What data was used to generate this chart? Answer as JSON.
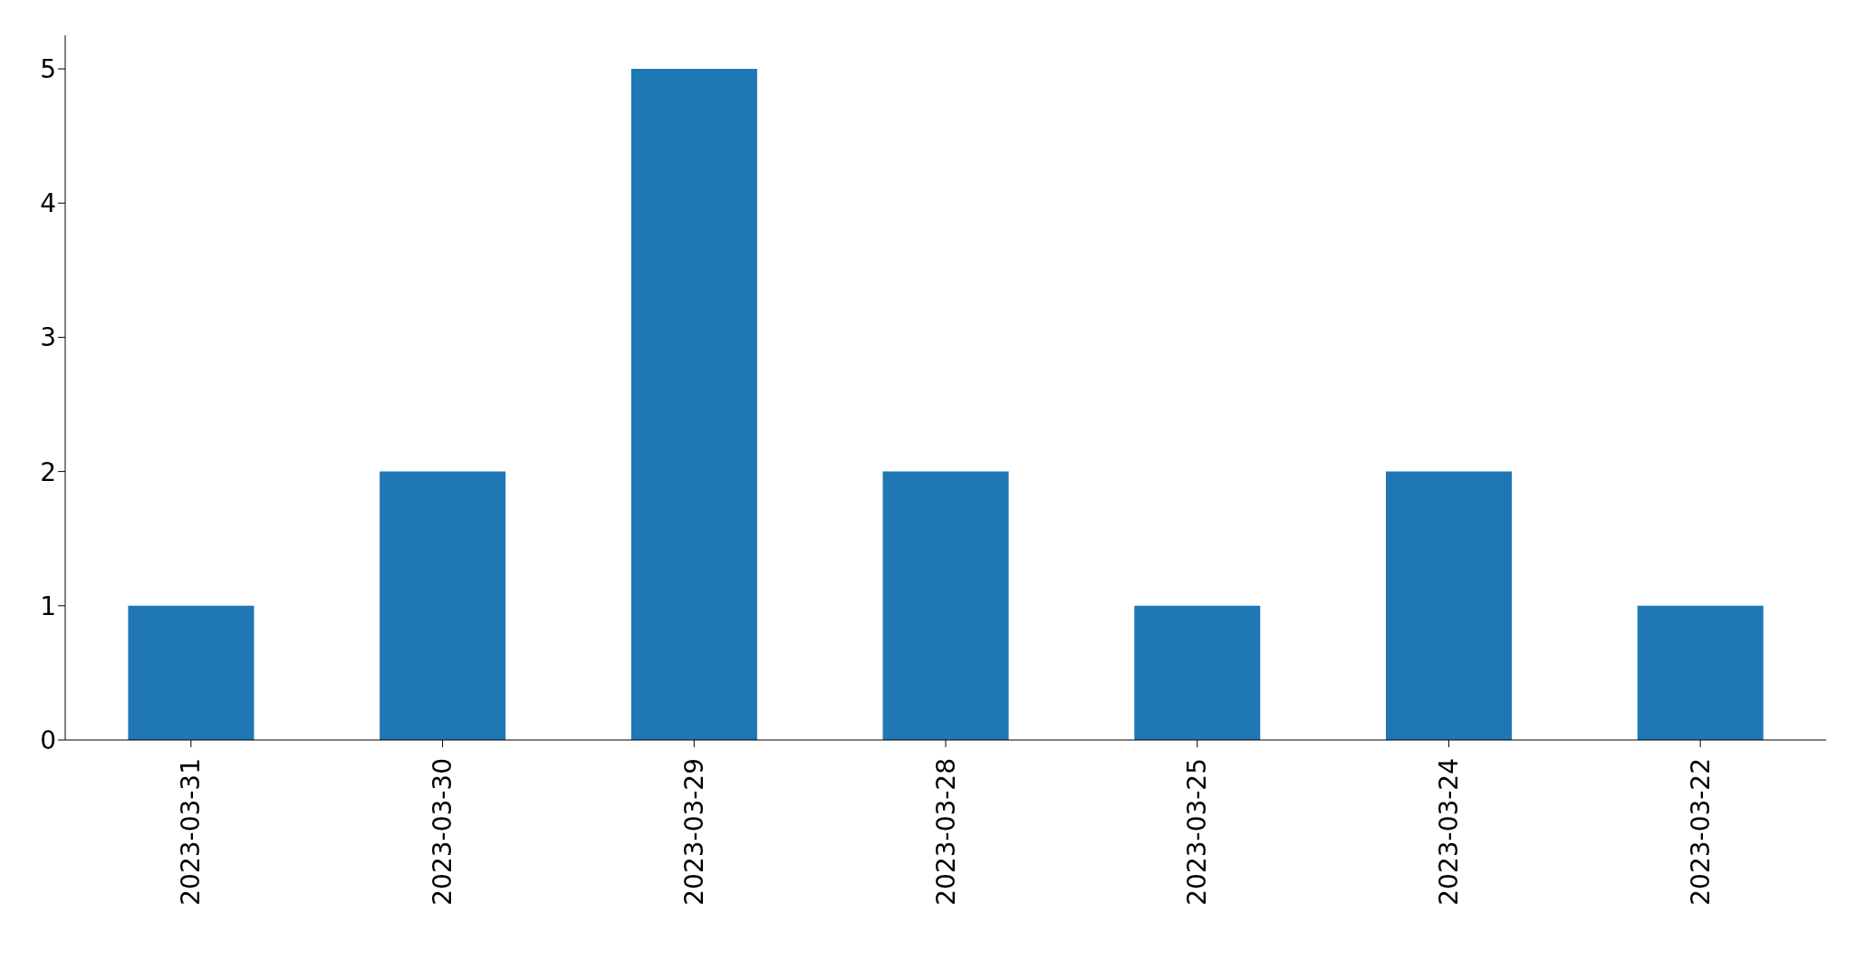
{
  "chart_data": {
    "type": "bar",
    "categories": [
      "2023-03-31",
      "2023-03-30",
      "2023-03-29",
      "2023-03-28",
      "2023-03-25",
      "2023-03-24",
      "2023-03-22"
    ],
    "values": [
      1,
      2,
      5,
      2,
      1,
      2,
      1
    ],
    "color": "#1f77b4",
    "ylim": [
      0,
      5.25
    ],
    "yticks": [
      0,
      1,
      2,
      3,
      4,
      5
    ],
    "grid": false,
    "legend": false
  }
}
